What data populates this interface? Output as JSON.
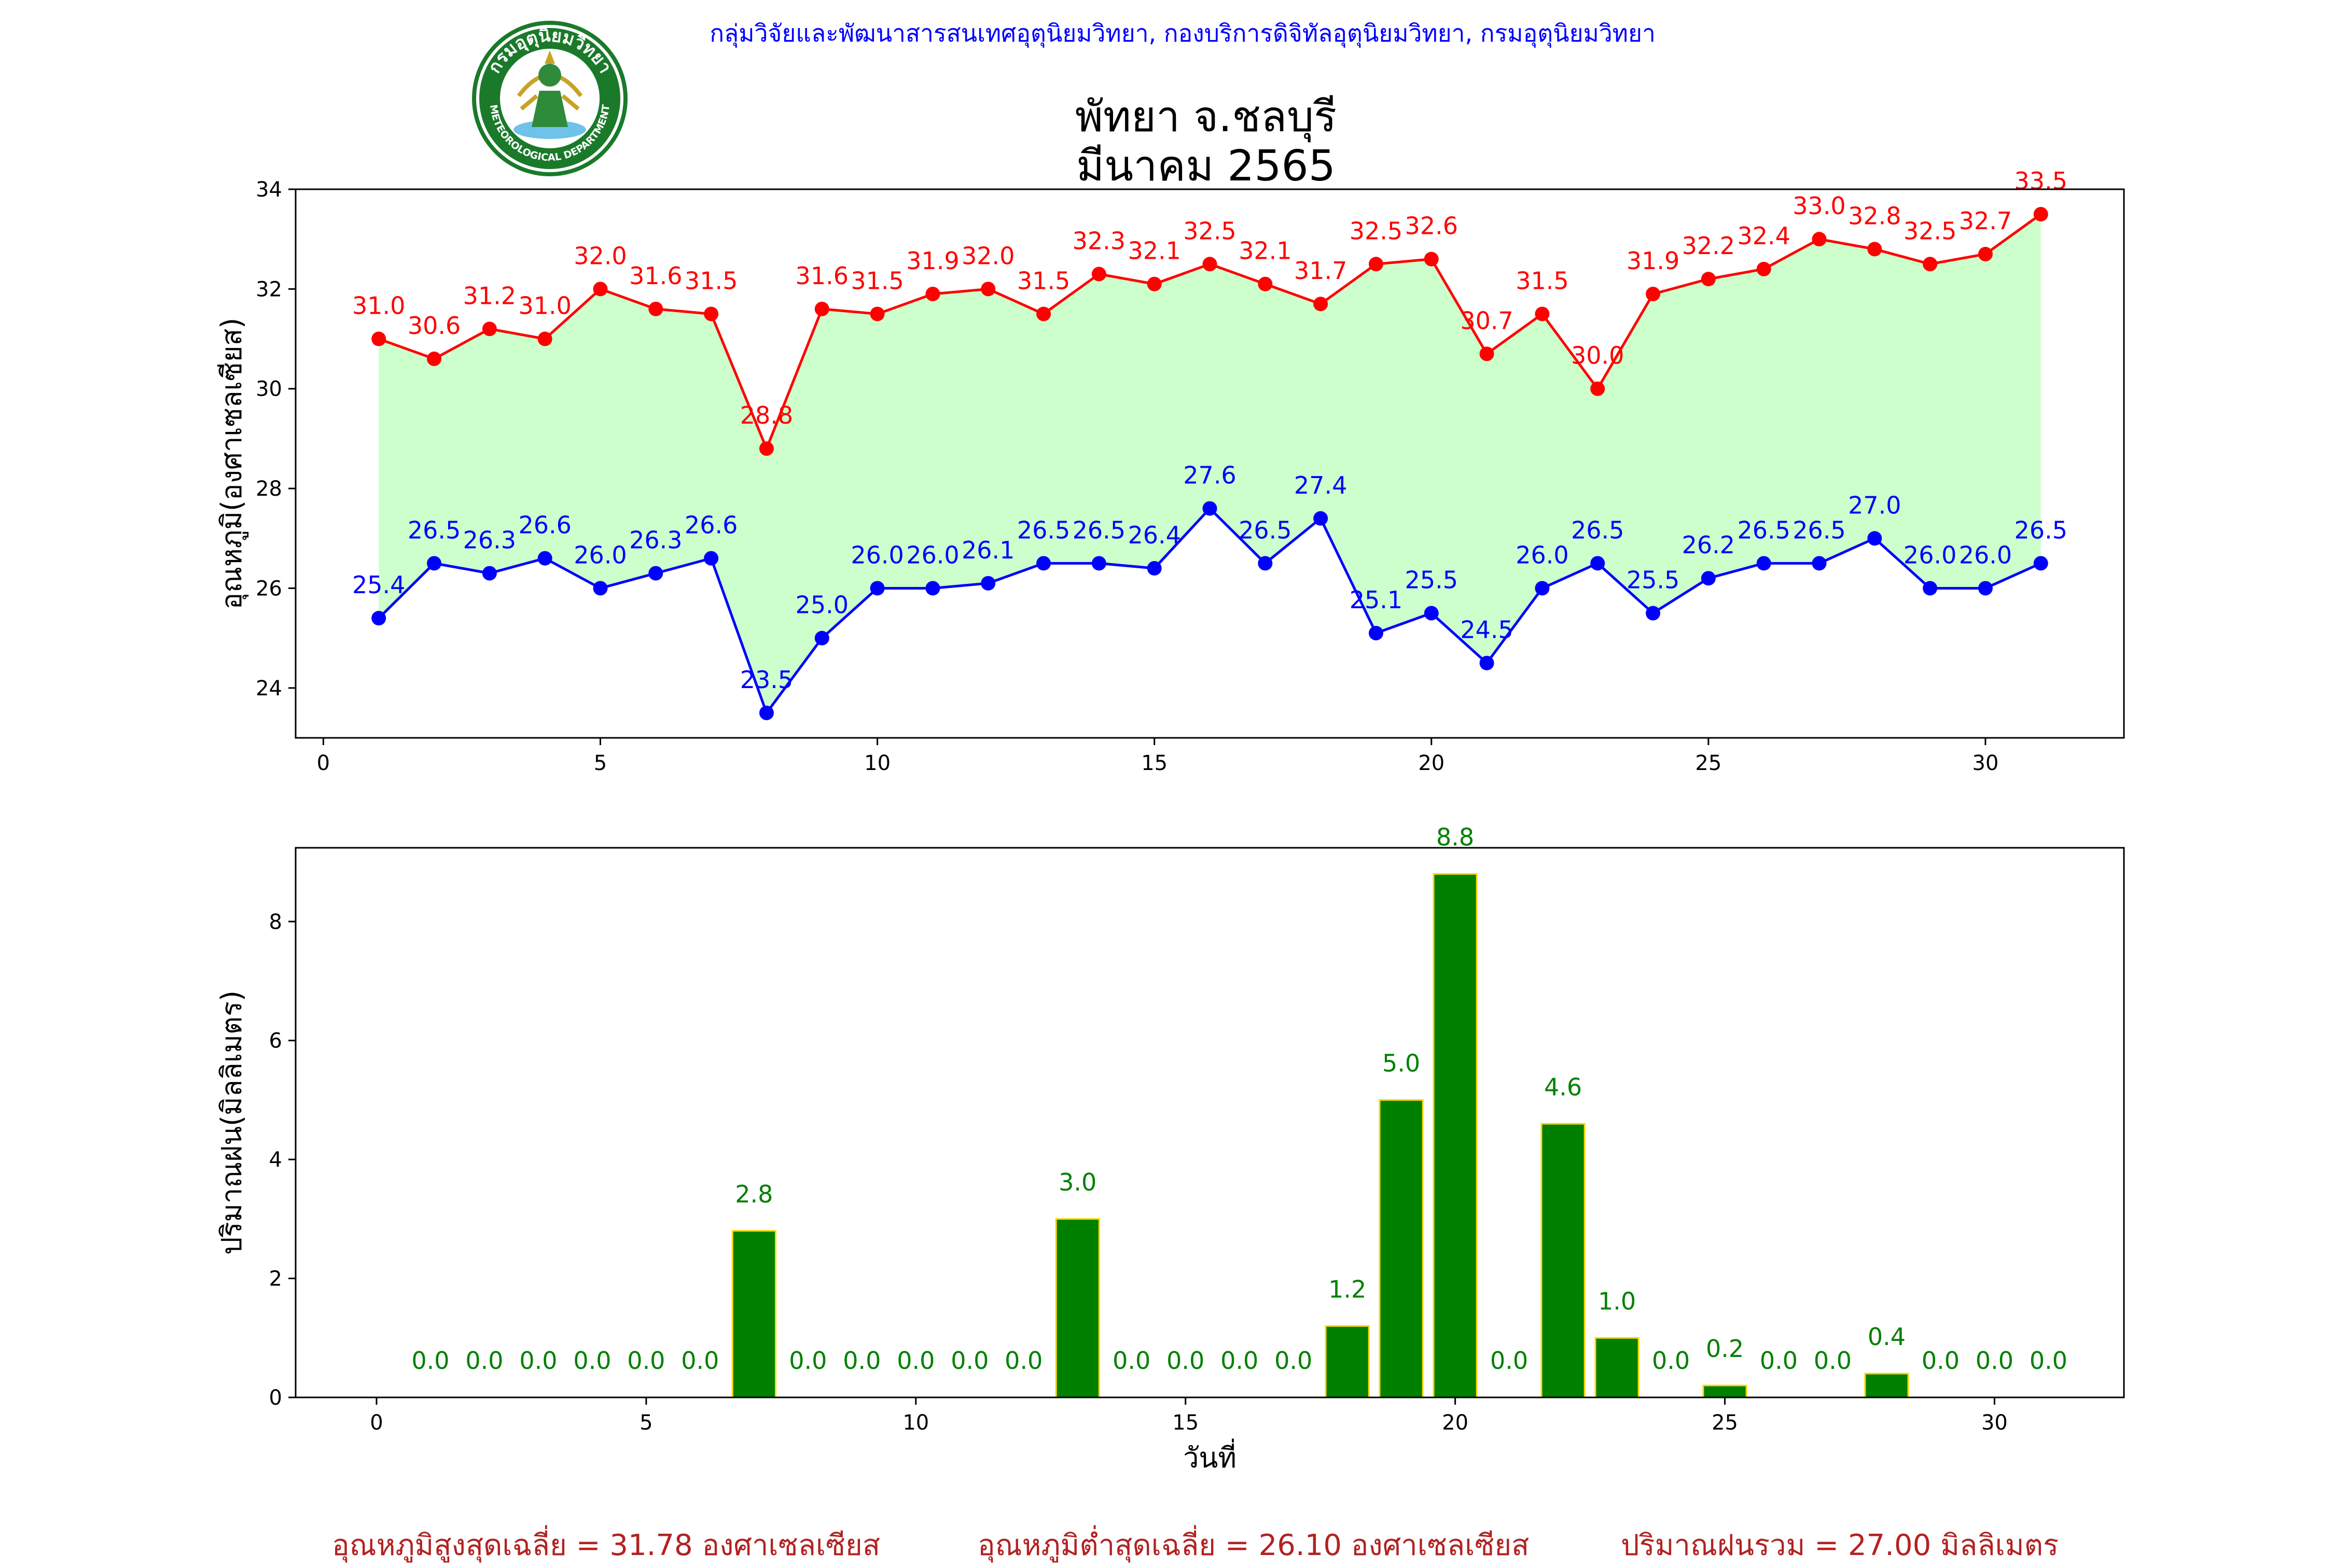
{
  "header": {
    "credit": "กลุ่มวิจัยและพัฒนาสารสนเทศอุตุนิยมวิทยา, กองบริการดิจิทัลอุตุนิยมวิทยา, กรมอุตุนิยมวิทยา",
    "title_line1": "พัทยา จ.ชลบุรี",
    "title_line2": "มีนาคม 2565",
    "logo": {
      "top_text": "กรมอุตุนิยมวิทยา",
      "bottom_text": "METEOROLOGICAL DEPARTMENT"
    }
  },
  "chart_data": [
    {
      "type": "line",
      "ylabel": "อุณหภูมิ(องศาเซลเซียส)",
      "xlabel": "",
      "xlim": [
        -0.5,
        32.5
      ],
      "ylim": [
        23,
        34
      ],
      "xticks": [
        0,
        5,
        10,
        15,
        20,
        25,
        30
      ],
      "yticks": [
        24,
        26,
        28,
        30,
        32,
        34
      ],
      "x": [
        1,
        2,
        3,
        4,
        5,
        6,
        7,
        8,
        9,
        10,
        11,
        12,
        13,
        14,
        15,
        16,
        17,
        18,
        19,
        20,
        21,
        22,
        23,
        24,
        25,
        26,
        27,
        28,
        29,
        30,
        31
      ],
      "fill_between": true,
      "fill_color": "#ccffcc",
      "series": [
        {
          "color": "#ff0000",
          "values": [
            31.0,
            30.6,
            31.2,
            31.0,
            32.0,
            31.6,
            31.5,
            28.8,
            31.6,
            31.5,
            31.9,
            32.0,
            31.5,
            32.3,
            32.1,
            32.5,
            32.1,
            31.7,
            32.5,
            32.6,
            30.7,
            31.5,
            30.0,
            31.9,
            32.2,
            32.4,
            33.0,
            32.8,
            32.5,
            32.7,
            33.5
          ],
          "labels": [
            "31.0",
            "30.6",
            "31.2",
            "31.0",
            "32.0",
            "31.6",
            "31.5",
            "28.8",
            "31.6",
            "31.5",
            "31.9",
            "32.0",
            "31.5",
            "32.3",
            "32.1",
            "32.5",
            "32.1",
            "31.7",
            "32.5",
            "32.6",
            "30.7",
            "31.5",
            "30.0",
            "31.9",
            "32.2",
            "32.4",
            "33.0",
            "32.8",
            "32.5",
            "32.7",
            "33.5"
          ]
        },
        {
          "color": "#0000ff",
          "values": [
            25.4,
            26.5,
            26.3,
            26.6,
            26.0,
            26.3,
            26.6,
            23.5,
            25.0,
            26.0,
            26.0,
            26.1,
            26.5,
            26.5,
            26.4,
            27.6,
            26.5,
            27.4,
            25.1,
            25.5,
            24.5,
            26.0,
            26.5,
            25.5,
            26.2,
            26.5,
            26.5,
            27.0,
            26.0,
            26.0,
            26.5
          ],
          "labels": [
            "25.4",
            "26.5",
            "26.3",
            "26.6",
            "26.0",
            "26.3",
            "26.6",
            "23.5",
            "25.0",
            "26.0",
            "26.0",
            "26.1",
            "26.5",
            "26.5",
            "26.4",
            "27.6",
            "26.5",
            "27.4",
            "25.1",
            "25.5",
            "24.5",
            "26.0",
            "26.5",
            "25.5",
            "26.2",
            "26.5",
            "26.5",
            "27.0",
            "26.0",
            "26.0",
            "26.5"
          ]
        }
      ]
    },
    {
      "type": "bar",
      "ylabel": "ปริมาณฝน(มิลลิเมตร)",
      "xlabel": "วันที่",
      "xlim": [
        -1.5,
        32.4
      ],
      "ylim": [
        0,
        9.24
      ],
      "xticks": [
        0,
        5,
        10,
        15,
        20,
        25,
        30
      ],
      "yticks": [
        0,
        2,
        4,
        6,
        8
      ],
      "bar_color": "#008000",
      "edge_color": "#ffd700",
      "label_color": "#008000",
      "x": [
        1,
        2,
        3,
        4,
        5,
        6,
        7,
        8,
        9,
        10,
        11,
        12,
        13,
        14,
        15,
        16,
        17,
        18,
        19,
        20,
        21,
        22,
        23,
        24,
        25,
        26,
        27,
        28,
        29,
        30,
        31
      ],
      "values": [
        0.0,
        0.0,
        0.0,
        0.0,
        0.0,
        0.0,
        2.8,
        0.0,
        0.0,
        0.0,
        0.0,
        0.0,
        3.0,
        0.0,
        0.0,
        0.0,
        0.0,
        1.2,
        5.0,
        8.8,
        0.0,
        4.6,
        1.0,
        0.0,
        0.2,
        0.0,
        0.0,
        0.4,
        0.0,
        0.0,
        0.0
      ],
      "labels": [
        "0.0",
        "0.0",
        "0.0",
        "0.0",
        "0.0",
        "0.0",
        "2.8",
        "0.0",
        "0.0",
        "0.0",
        "0.0",
        "0.0",
        "3.0",
        "0.0",
        "0.0",
        "0.0",
        "0.0",
        "1.2",
        "5.0",
        "8.8",
        "0.0",
        "4.6",
        "1.0",
        "0.0",
        "0.2",
        "0.0",
        "0.0",
        "0.4",
        "0.0",
        "0.0",
        "0.0"
      ]
    }
  ],
  "footer": {
    "max_avg": "อุณหภูมิสูงสุดเฉลี่ย = 31.78 องศาเซลเซียส",
    "min_avg": "อุณหภูมิต่ำสุดเฉลี่ย = 26.10 องศาเซลเซียส",
    "rain_total": "ปริมาณฝนรวม = 27.00 มิลลิเมตร"
  }
}
